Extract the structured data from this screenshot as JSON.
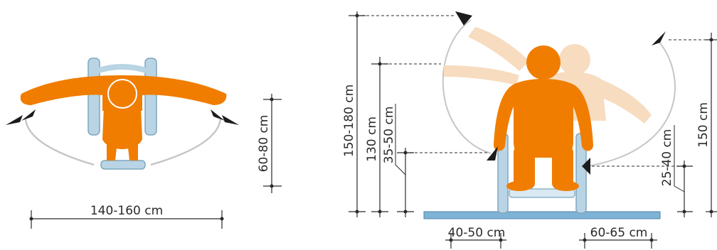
{
  "colors": {
    "body": "#f07d00",
    "body_faded": "#f7dcc0",
    "wheelchair": "#b9d4e4",
    "wheelchair_edge": "#7fa6bf",
    "floor": "#7fb3d6",
    "floor_edge": "#4f86ad",
    "line": "#2a2a2a",
    "arc": "#c6c6c6",
    "arrow": "#1c1c1c"
  },
  "top_view": {
    "width_label": "140-160 cm",
    "depth_label": "60-80 cm"
  },
  "front_view": {
    "reach_high_label": "150-180 cm",
    "eye_level_label": "130 cm",
    "armrest_label": "35-50 cm",
    "side_reach_label": "150 cm",
    "side_low_label": "25-40 cm",
    "seat_width_label": "40-50 cm",
    "chair_width_label": "60-65 cm"
  }
}
